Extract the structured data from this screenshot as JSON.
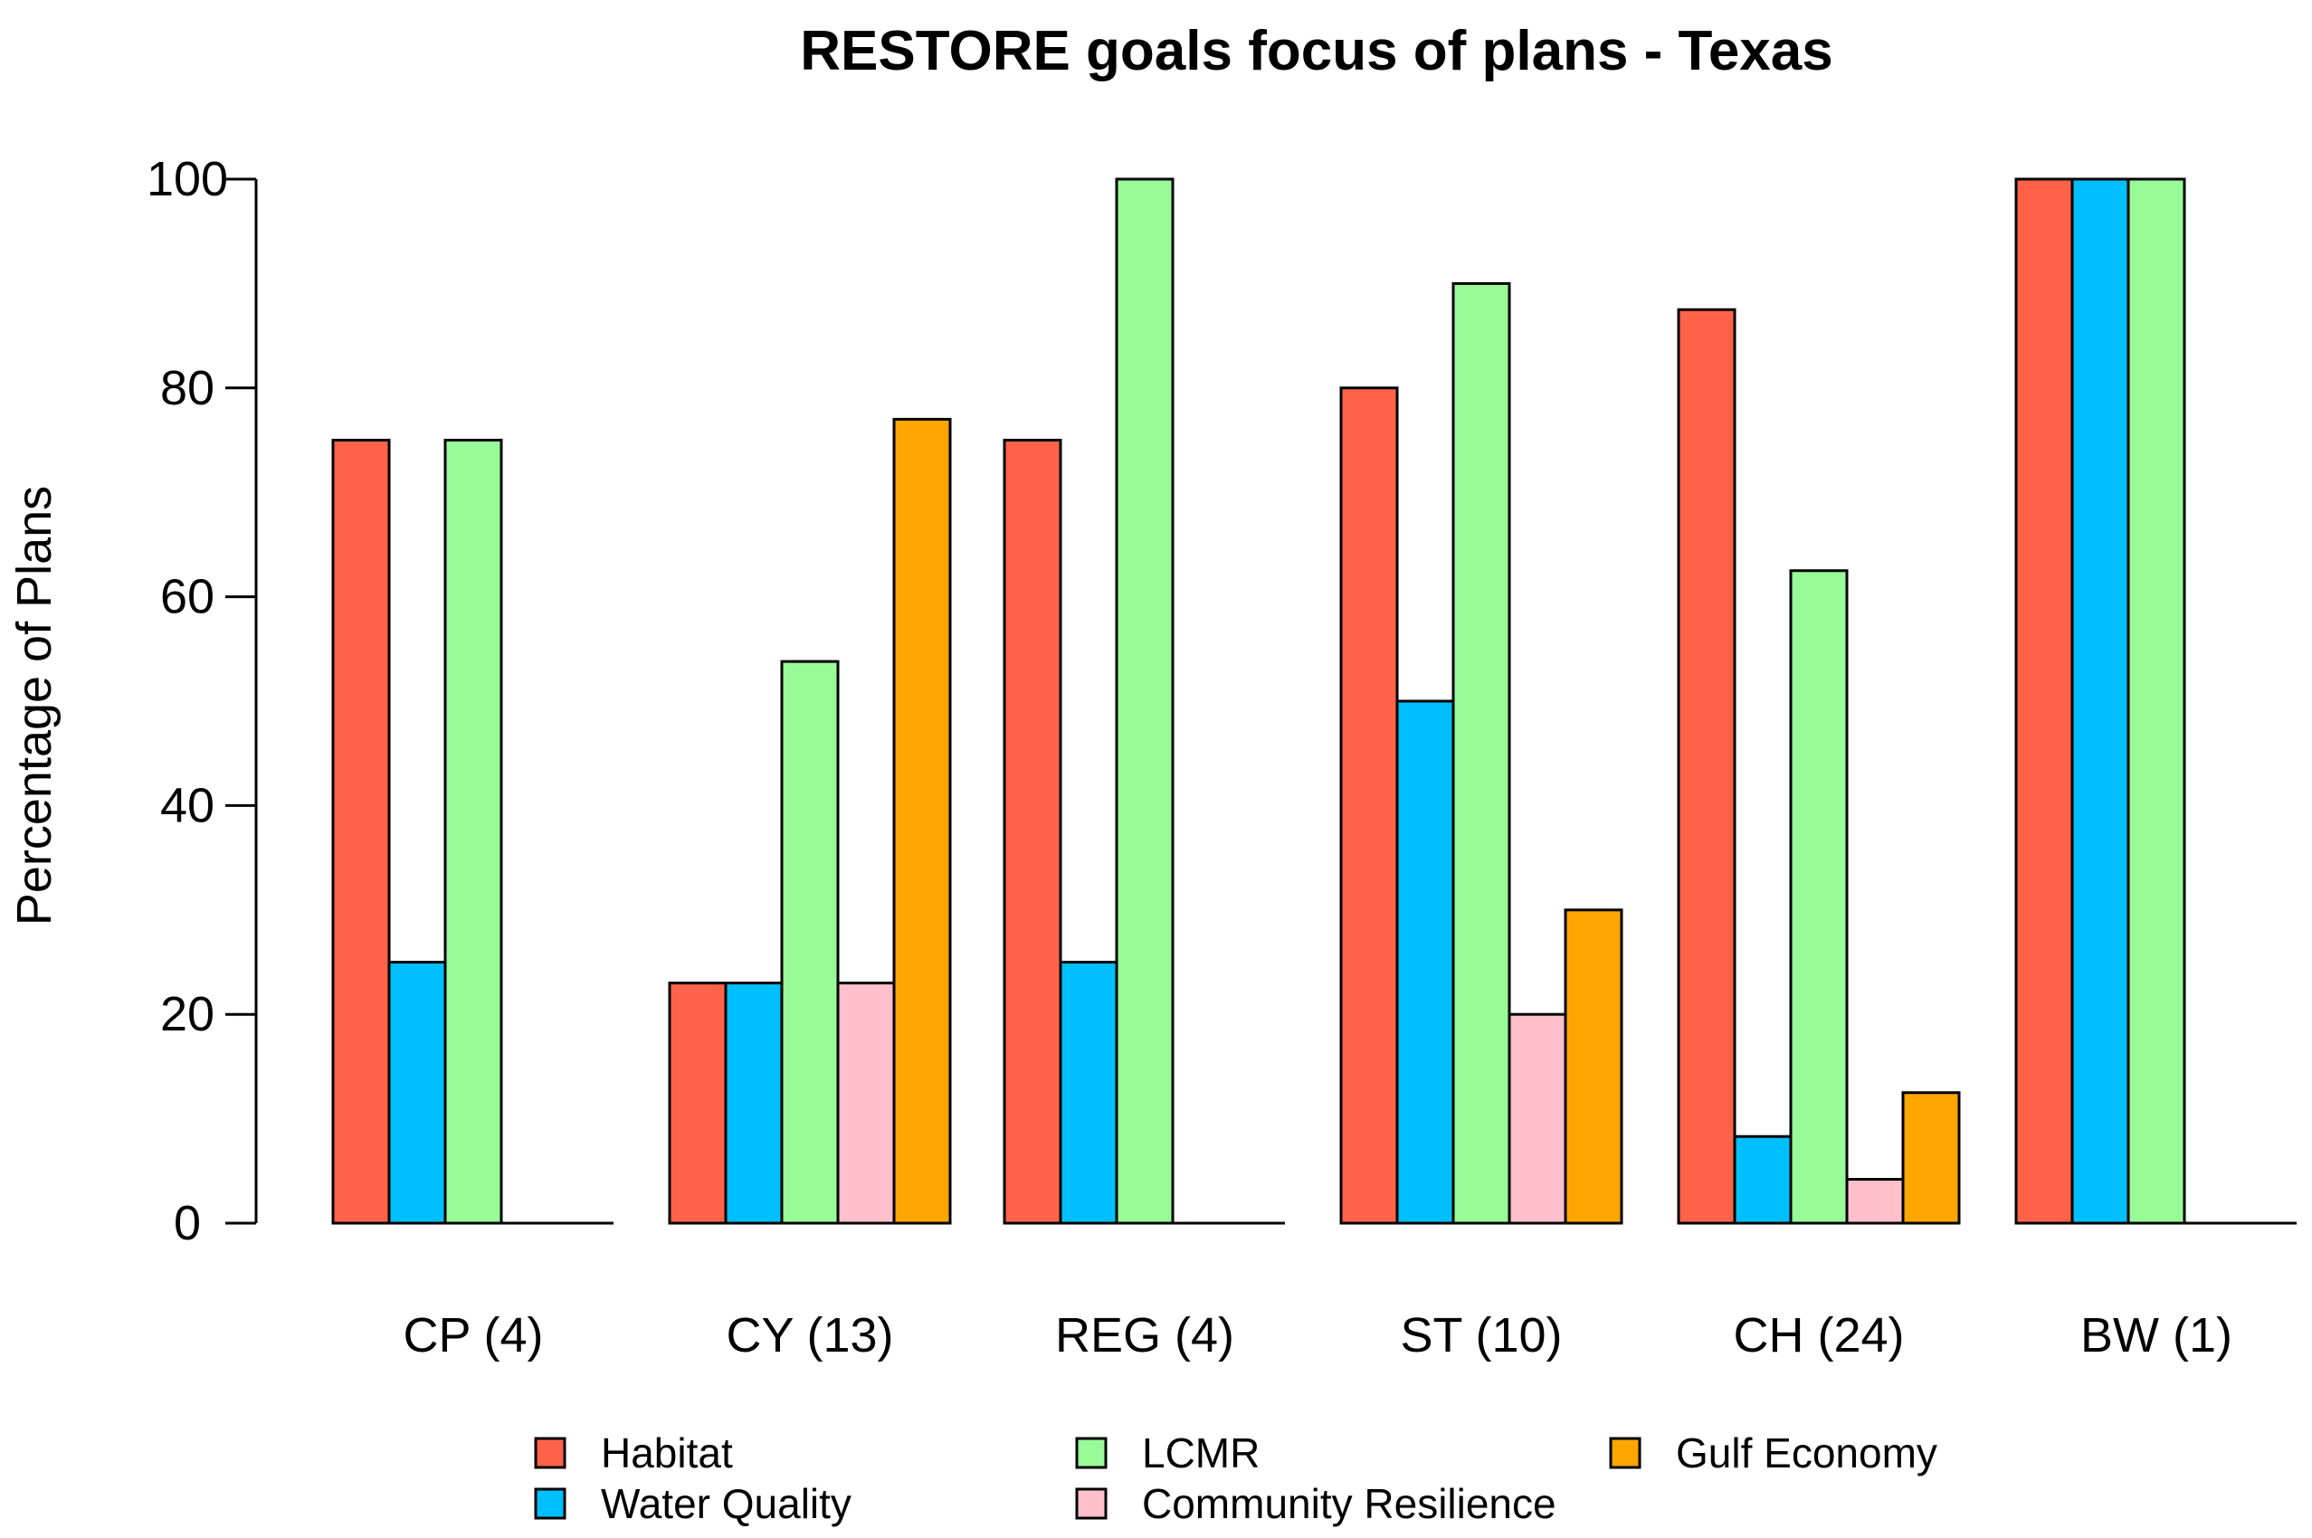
{
  "chart_data": {
    "type": "bar",
    "title": "RESTORE goals focus of plans - Texas",
    "xlabel": "",
    "ylabel": "Percentage of Plans",
    "ylim": [
      0,
      100
    ],
    "yticks": [
      "0",
      "20",
      "40",
      "60",
      "80",
      "100"
    ],
    "categories": [
      "CP (4)",
      "CY (13)",
      "REG (4)",
      "ST (10)",
      "CH (24)",
      "BW (1)"
    ],
    "series": [
      {
        "name": "Habitat",
        "color": "#FF6347",
        "values": [
          75,
          23,
          75,
          80,
          87.5,
          100
        ]
      },
      {
        "name": "Water Quality",
        "color": "#00BFFF",
        "values": [
          25,
          23,
          25,
          50,
          8.3,
          100
        ]
      },
      {
        "name": "LCMR",
        "color": "#98FB98",
        "values": [
          75,
          53.8,
          100,
          90,
          62.5,
          100
        ]
      },
      {
        "name": "Community Resilience",
        "color": "#FFC0CB",
        "values": [
          0,
          23,
          0,
          20,
          4.2,
          0
        ]
      },
      {
        "name": "Gulf Economy",
        "color": "#FFA500",
        "values": [
          0,
          77,
          0,
          30,
          12.5,
          0
        ]
      }
    ],
    "grid": false,
    "legend_position": "bottom"
  }
}
